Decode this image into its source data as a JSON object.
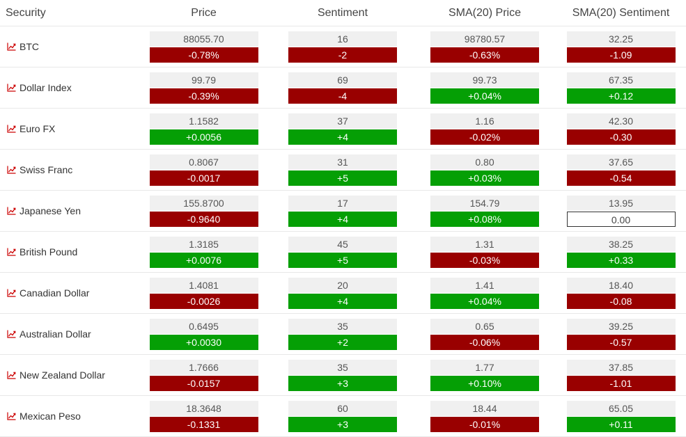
{
  "headers": [
    "Security",
    "Price",
    "Sentiment",
    "SMA(20) Price",
    "SMA(20) Sentiment"
  ],
  "colors": {
    "positive": "#059f05",
    "negative": "#990000",
    "neutral_bg": "#f0f0f0",
    "icon": "#cc0000"
  },
  "row_icon": "chart-trend-icon",
  "rows": [
    {
      "name": "BTC",
      "price": {
        "value": "88055.70",
        "change": "-0.78%",
        "dir": "neg"
      },
      "sentiment": {
        "value": "16",
        "change": "-2",
        "dir": "neg"
      },
      "sma_price": {
        "value": "98780.57",
        "change": "-0.63%",
        "dir": "neg"
      },
      "sma_sentiment": {
        "value": "32.25",
        "change": "-1.09",
        "dir": "neg"
      }
    },
    {
      "name": "Dollar Index",
      "price": {
        "value": "99.79",
        "change": "-0.39%",
        "dir": "neg"
      },
      "sentiment": {
        "value": "69",
        "change": "-4",
        "dir": "neg"
      },
      "sma_price": {
        "value": "99.73",
        "change": "+0.04%",
        "dir": "pos"
      },
      "sma_sentiment": {
        "value": "67.35",
        "change": "+0.12",
        "dir": "pos"
      }
    },
    {
      "name": "Euro FX",
      "price": {
        "value": "1.1582",
        "change": "+0.0056",
        "dir": "pos"
      },
      "sentiment": {
        "value": "37",
        "change": "+4",
        "dir": "pos"
      },
      "sma_price": {
        "value": "1.16",
        "change": "-0.02%",
        "dir": "neg"
      },
      "sma_sentiment": {
        "value": "42.30",
        "change": "-0.30",
        "dir": "neg"
      }
    },
    {
      "name": "Swiss Franc",
      "price": {
        "value": "0.8067",
        "change": "-0.0017",
        "dir": "neg"
      },
      "sentiment": {
        "value": "31",
        "change": "+5",
        "dir": "pos"
      },
      "sma_price": {
        "value": "0.80",
        "change": "+0.03%",
        "dir": "pos"
      },
      "sma_sentiment": {
        "value": "37.65",
        "change": "-0.54",
        "dir": "neg"
      }
    },
    {
      "name": "Japanese Yen",
      "price": {
        "value": "155.8700",
        "change": "-0.9640",
        "dir": "neg"
      },
      "sentiment": {
        "value": "17",
        "change": "+4",
        "dir": "pos"
      },
      "sma_price": {
        "value": "154.79",
        "change": "+0.08%",
        "dir": "pos"
      },
      "sma_sentiment": {
        "value": "13.95",
        "change": "0.00",
        "dir": "zero"
      }
    },
    {
      "name": "British Pound",
      "price": {
        "value": "1.3185",
        "change": "+0.0076",
        "dir": "pos"
      },
      "sentiment": {
        "value": "45",
        "change": "+5",
        "dir": "pos"
      },
      "sma_price": {
        "value": "1.31",
        "change": "-0.03%",
        "dir": "neg"
      },
      "sma_sentiment": {
        "value": "38.25",
        "change": "+0.33",
        "dir": "pos"
      }
    },
    {
      "name": "Canadian Dollar",
      "price": {
        "value": "1.4081",
        "change": "-0.0026",
        "dir": "neg"
      },
      "sentiment": {
        "value": "20",
        "change": "+4",
        "dir": "pos"
      },
      "sma_price": {
        "value": "1.41",
        "change": "+0.04%",
        "dir": "pos"
      },
      "sma_sentiment": {
        "value": "18.40",
        "change": "-0.08",
        "dir": "neg"
      }
    },
    {
      "name": "Australian Dollar",
      "price": {
        "value": "0.6495",
        "change": "+0.0030",
        "dir": "pos"
      },
      "sentiment": {
        "value": "35",
        "change": "+2",
        "dir": "pos"
      },
      "sma_price": {
        "value": "0.65",
        "change": "-0.06%",
        "dir": "neg"
      },
      "sma_sentiment": {
        "value": "39.25",
        "change": "-0.57",
        "dir": "neg"
      }
    },
    {
      "name": "New Zealand Dollar",
      "price": {
        "value": "1.7666",
        "change": "-0.0157",
        "dir": "neg"
      },
      "sentiment": {
        "value": "35",
        "change": "+3",
        "dir": "pos"
      },
      "sma_price": {
        "value": "1.77",
        "change": "+0.10%",
        "dir": "pos"
      },
      "sma_sentiment": {
        "value": "37.85",
        "change": "-1.01",
        "dir": "neg"
      }
    },
    {
      "name": "Mexican Peso",
      "price": {
        "value": "18.3648",
        "change": "-0.1331",
        "dir": "neg"
      },
      "sentiment": {
        "value": "60",
        "change": "+3",
        "dir": "pos"
      },
      "sma_price": {
        "value": "18.44",
        "change": "-0.01%",
        "dir": "neg"
      },
      "sma_sentiment": {
        "value": "65.05",
        "change": "+0.11",
        "dir": "pos"
      }
    }
  ]
}
